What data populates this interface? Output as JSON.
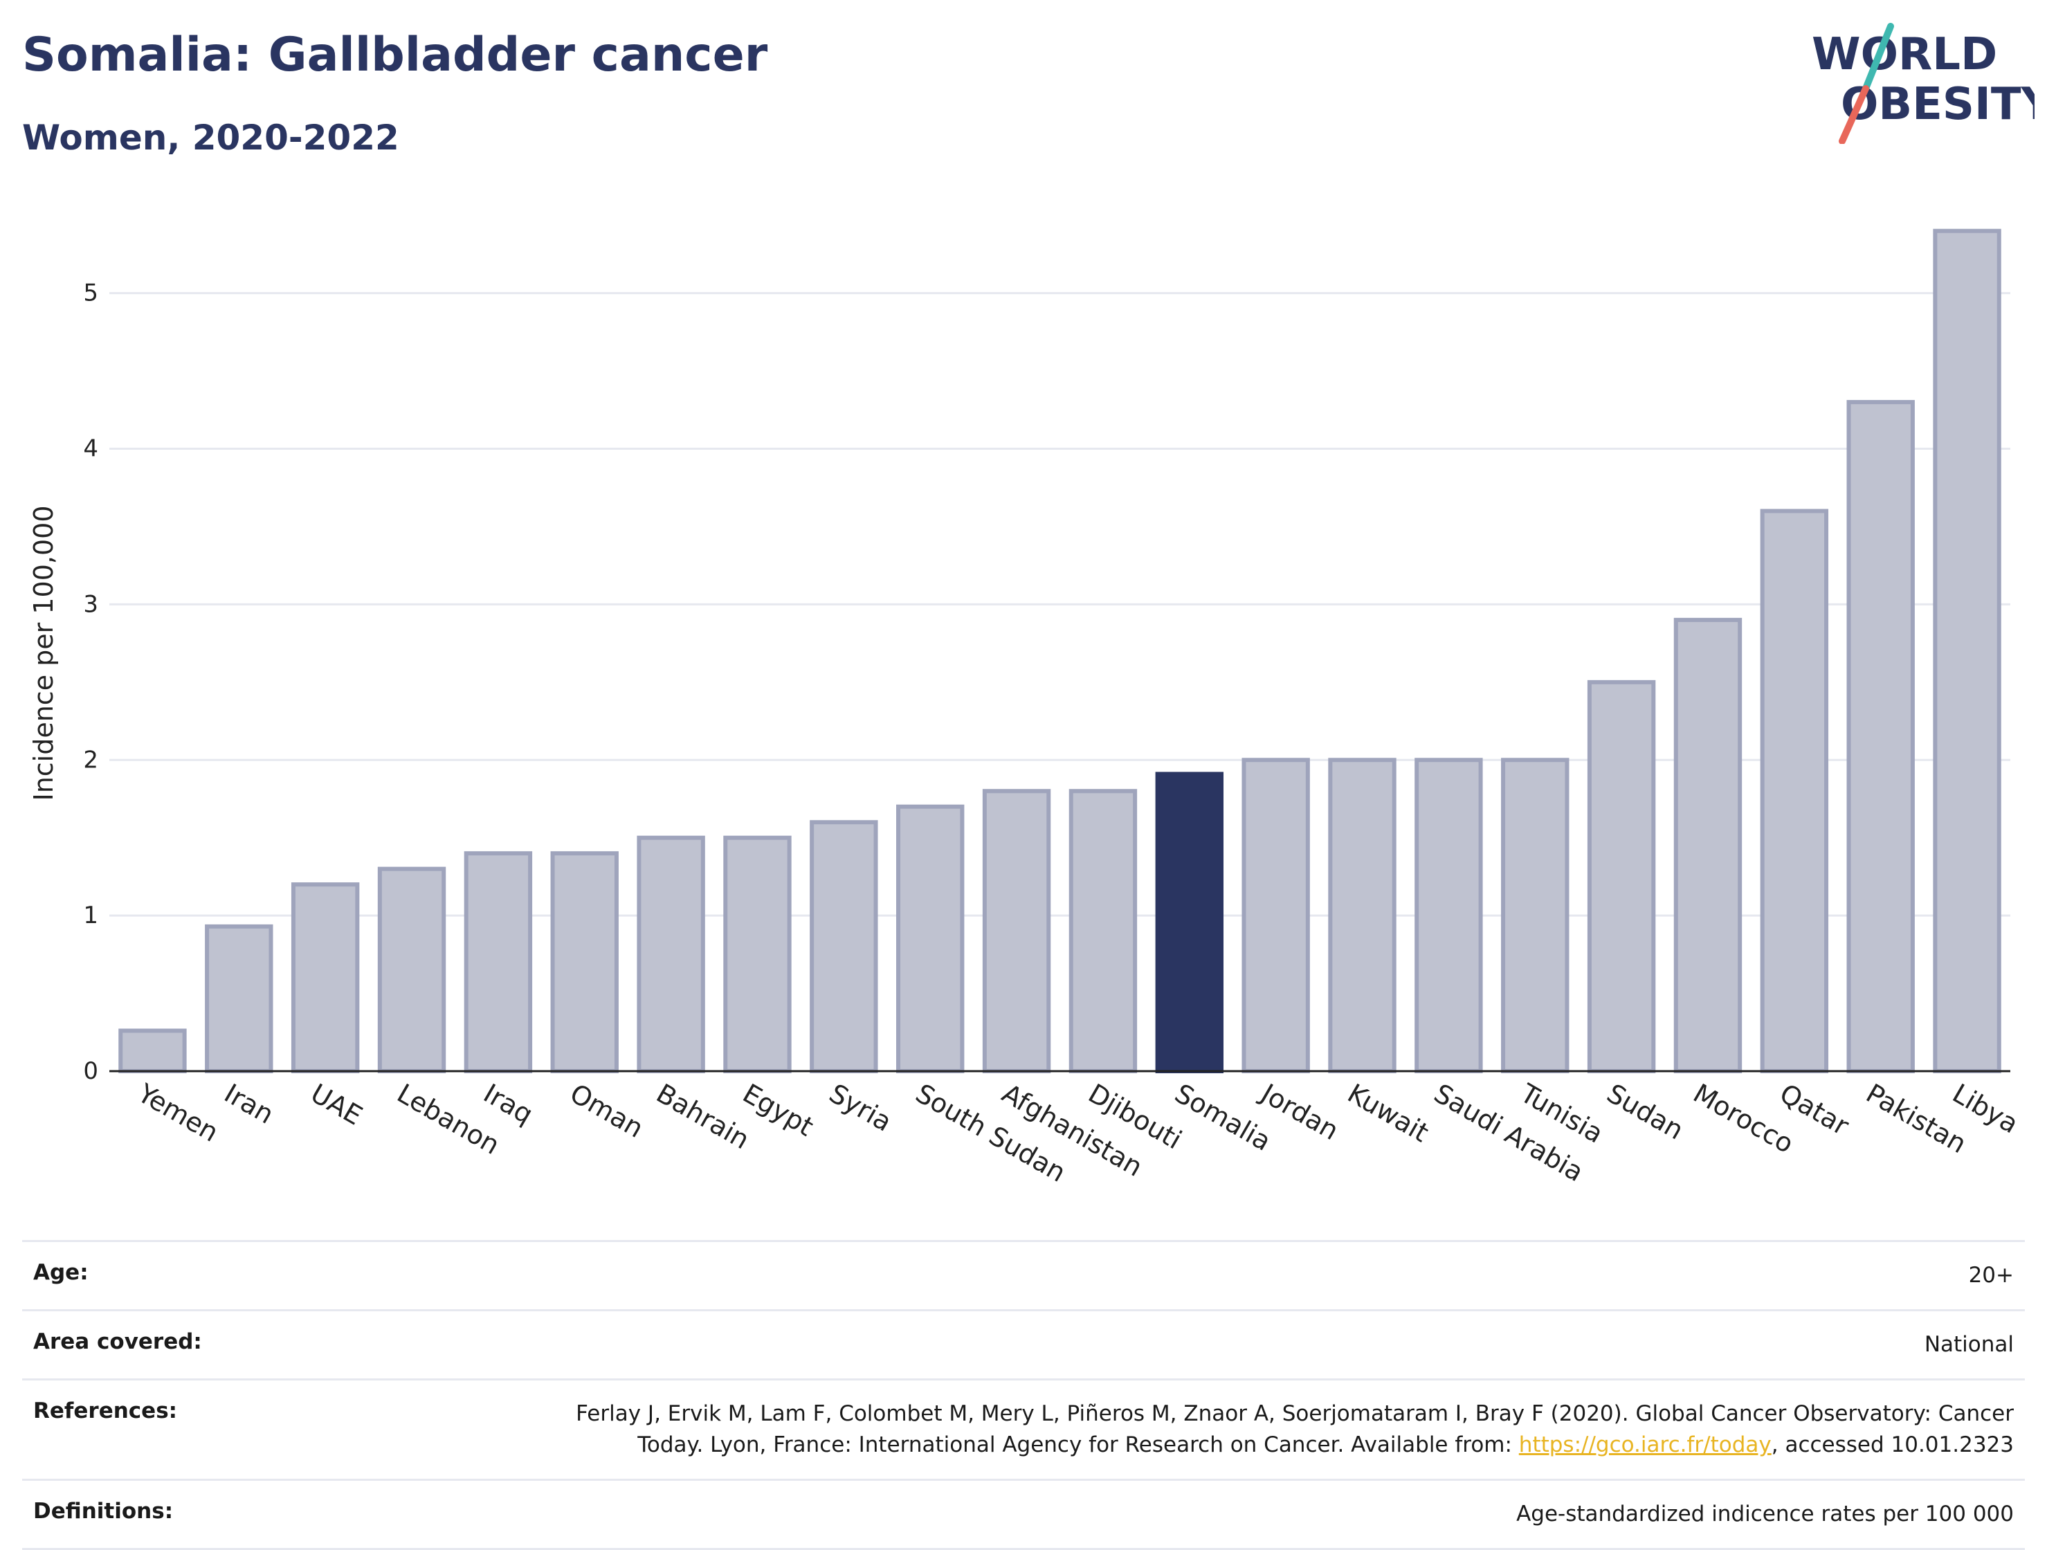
{
  "header": {
    "title": "Somalia: Gallbladder cancer",
    "subtitle": "Women, 2020-2022"
  },
  "logo": {
    "line1": "WORLD",
    "line2": "OBESITY",
    "colors": {
      "text": "#2a3561",
      "slash_top": "#3fb8b0",
      "slash_bottom": "#e8675a"
    }
  },
  "colors": {
    "highlight": "#2a3561",
    "bar_fill": "#bfc2d0",
    "bar_stroke": "#9fa4bc",
    "grid": "#e6e8ef",
    "axis": "#222222"
  },
  "chart_data": {
    "type": "bar",
    "categories": [
      "Yemen",
      "Iran",
      "UAE",
      "Lebanon",
      "Iraq",
      "Oman",
      "Bahrain",
      "Egypt",
      "Syria",
      "South Sudan",
      "Afghanistan",
      "Djibouti",
      "Somalia",
      "Jordan",
      "Kuwait",
      "Saudi Arabia",
      "Tunisia",
      "Sudan",
      "Morocco",
      "Qatar",
      "Pakistan",
      "Libya"
    ],
    "values": [
      0.26,
      0.93,
      1.2,
      1.3,
      1.4,
      1.4,
      1.5,
      1.5,
      1.6,
      1.7,
      1.8,
      1.8,
      1.91,
      2.0,
      2.0,
      2.0,
      2.0,
      2.5,
      2.9,
      3.6,
      4.3,
      5.4
    ],
    "highlight": "Somalia",
    "xlabel": "",
    "ylabel": "Incidence per 100,000",
    "ylim": [
      0,
      5.55
    ],
    "yticks": [
      0,
      1,
      2,
      3,
      4,
      5
    ],
    "grid": true
  },
  "meta": {
    "age_label": "Age:",
    "age_value": "20+",
    "area_label": "Area covered:",
    "area_value": "National",
    "references_label": "References:",
    "references_text_1": "Ferlay J, Ervik M, Lam F, Colombet M, Mery L, Piñeros M, Znaor A, Soerjomataram I, Bray F (2020). Global Cancer Observatory: Cancer",
    "references_text_2": "Today. Lyon, France: International Agency for Research on Cancer. Available from: ",
    "references_link": "https://gco.iarc.fr/today",
    "references_text_3": ", accessed 10.01.2323",
    "definitions_label": "Definitions:",
    "definitions_value": "Age-standardized indicence rates per 100 000"
  }
}
